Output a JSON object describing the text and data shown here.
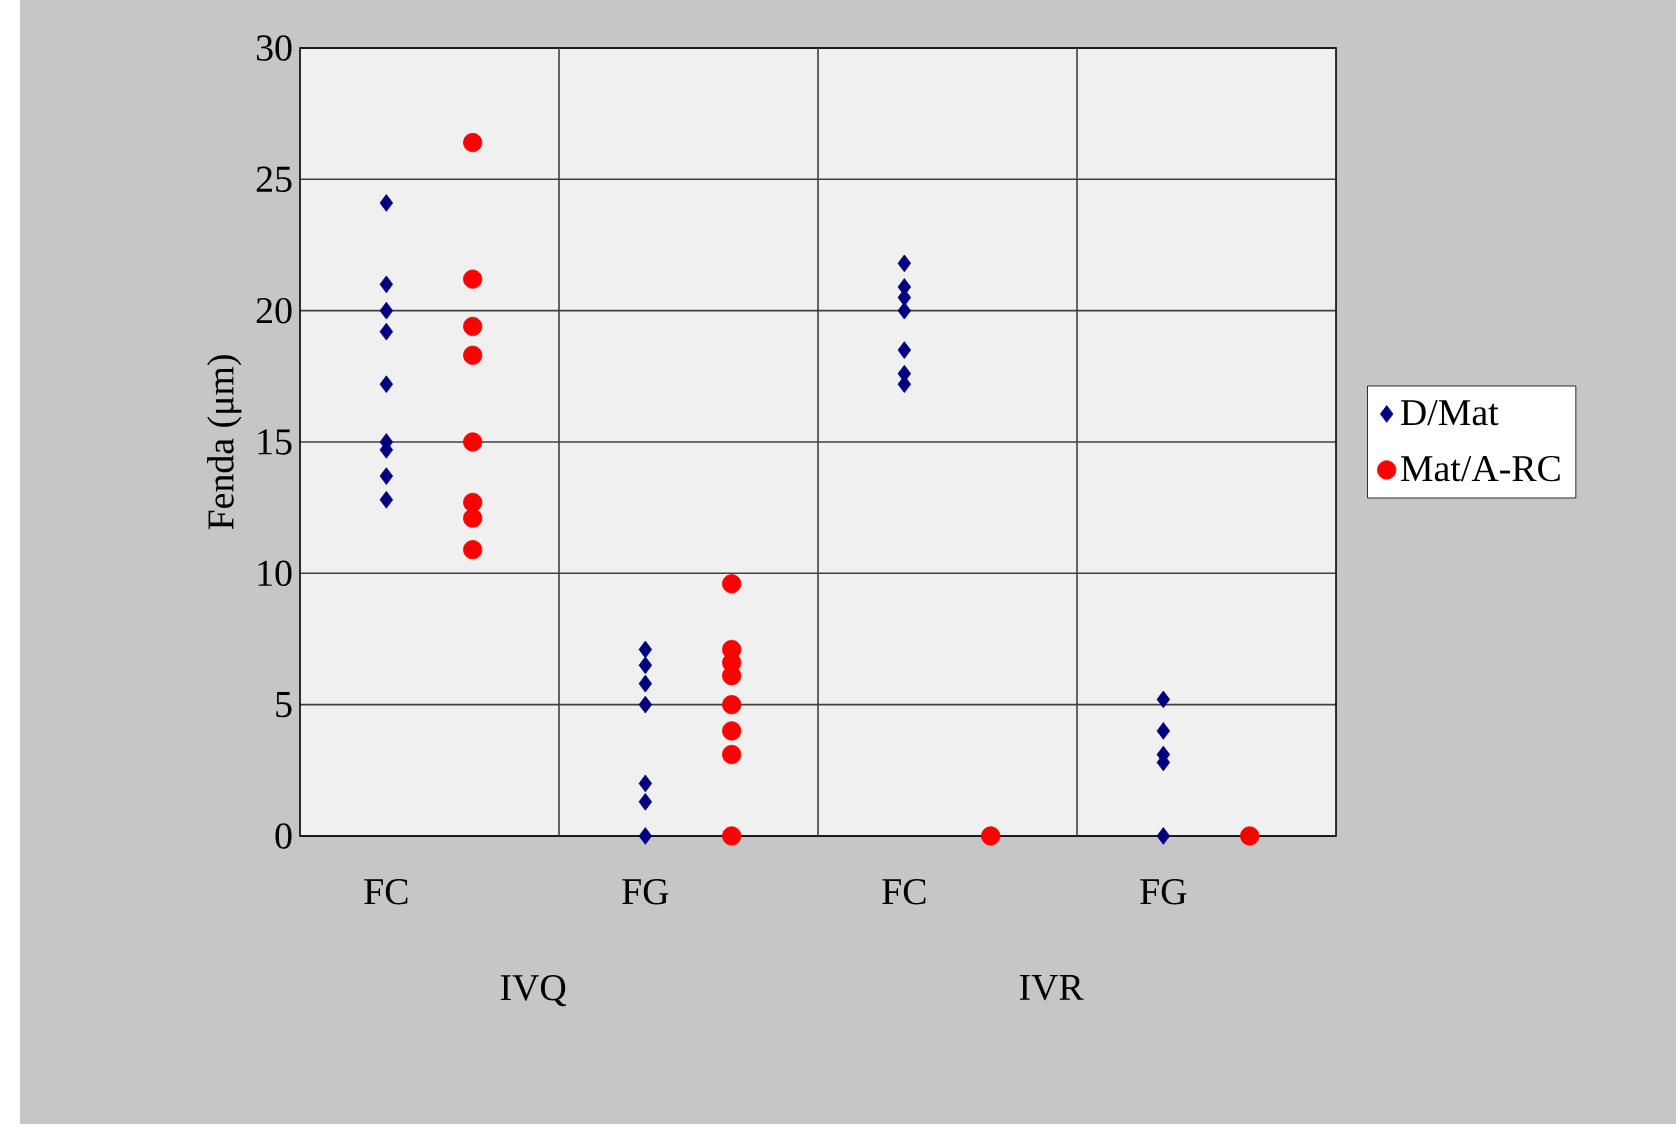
{
  "chart_data": {
    "type": "scatter",
    "ylabel": "Fenda (μm)",
    "categories": [
      "FC",
      null,
      "FG",
      null,
      "FC",
      null,
      "FG",
      null
    ],
    "annotations": [
      "IVQ",
      "IVR"
    ],
    "series": [
      {
        "name": "D/Mat",
        "color": "#000080",
        "marker": "diamond",
        "values": [
          24.1,
          null,
          7.1,
          null,
          21.8,
          null,
          5.2,
          null
        ]
      },
      {
        "color": "#000080",
        "marker": "diamond",
        "values": [
          21.0,
          null,
          6.5,
          null,
          20.9,
          null,
          4.0,
          null
        ]
      },
      {
        "color": "#000080",
        "marker": "diamond",
        "values": [
          20.0,
          null,
          5.8,
          null,
          20.5,
          null,
          3.1,
          null
        ]
      },
      {
        "color": "#000080",
        "marker": "diamond",
        "values": [
          19.2,
          null,
          5.0,
          null,
          20.0,
          null,
          2.8,
          null
        ]
      },
      {
        "color": "#000080",
        "marker": "diamond",
        "values": [
          17.2,
          null,
          2.0,
          null,
          18.5,
          null,
          0,
          null
        ]
      },
      {
        "color": "#000080",
        "marker": "diamond",
        "values": [
          15.0,
          null,
          1.3,
          null,
          17.6,
          null,
          null,
          null
        ]
      },
      {
        "color": "#000080",
        "marker": "diamond",
        "values": [
          14.7,
          null,
          0,
          null,
          17.2,
          null,
          null,
          null
        ]
      },
      {
        "color": "#000080",
        "marker": "diamond",
        "values": [
          13.7,
          null,
          null,
          null,
          null,
          null,
          null,
          null
        ]
      },
      {
        "color": "#000080",
        "marker": "diamond",
        "values": [
          12.8,
          null,
          null,
          null,
          null,
          null,
          null,
          null
        ]
      },
      {
        "name": "Mat/A-RC",
        "color": "#ff0000",
        "marker": "circle",
        "values": [
          null,
          26.4,
          null,
          9.6,
          null,
          0,
          null,
          0
        ]
      },
      {
        "color": "#ff0000",
        "marker": "circle",
        "values": [
          null,
          21.2,
          null,
          7.1,
          null,
          null,
          null,
          null
        ]
      },
      {
        "color": "#ff0000",
        "marker": "circle",
        "values": [
          null,
          19.4,
          null,
          6.6,
          null,
          null,
          null,
          null
        ]
      },
      {
        "color": "#ff0000",
        "marker": "circle",
        "values": [
          null,
          18.3,
          null,
          6.1,
          null,
          null,
          null,
          null
        ]
      },
      {
        "color": "#ff0000",
        "marker": "circle",
        "values": [
          null,
          15.0,
          null,
          5.0,
          null,
          null,
          null,
          null
        ]
      },
      {
        "color": "#ff0000",
        "marker": "circle",
        "values": [
          null,
          12.7,
          null,
          4.0,
          null,
          null,
          null,
          null
        ]
      },
      {
        "color": "#ff0000",
        "marker": "circle",
        "values": [
          null,
          12.1,
          null,
          3.1,
          null,
          null,
          null,
          null
        ]
      },
      {
        "color": "#ff0000",
        "marker": "circle",
        "values": [
          null,
          10.9,
          null,
          0,
          null,
          null,
          null,
          null
        ]
      }
    ],
    "ylim": [
      0,
      30
    ],
    "yticks": [
      0,
      5,
      10,
      15,
      20,
      25,
      30
    ],
    "grid": "y",
    "legend": "right"
  }
}
